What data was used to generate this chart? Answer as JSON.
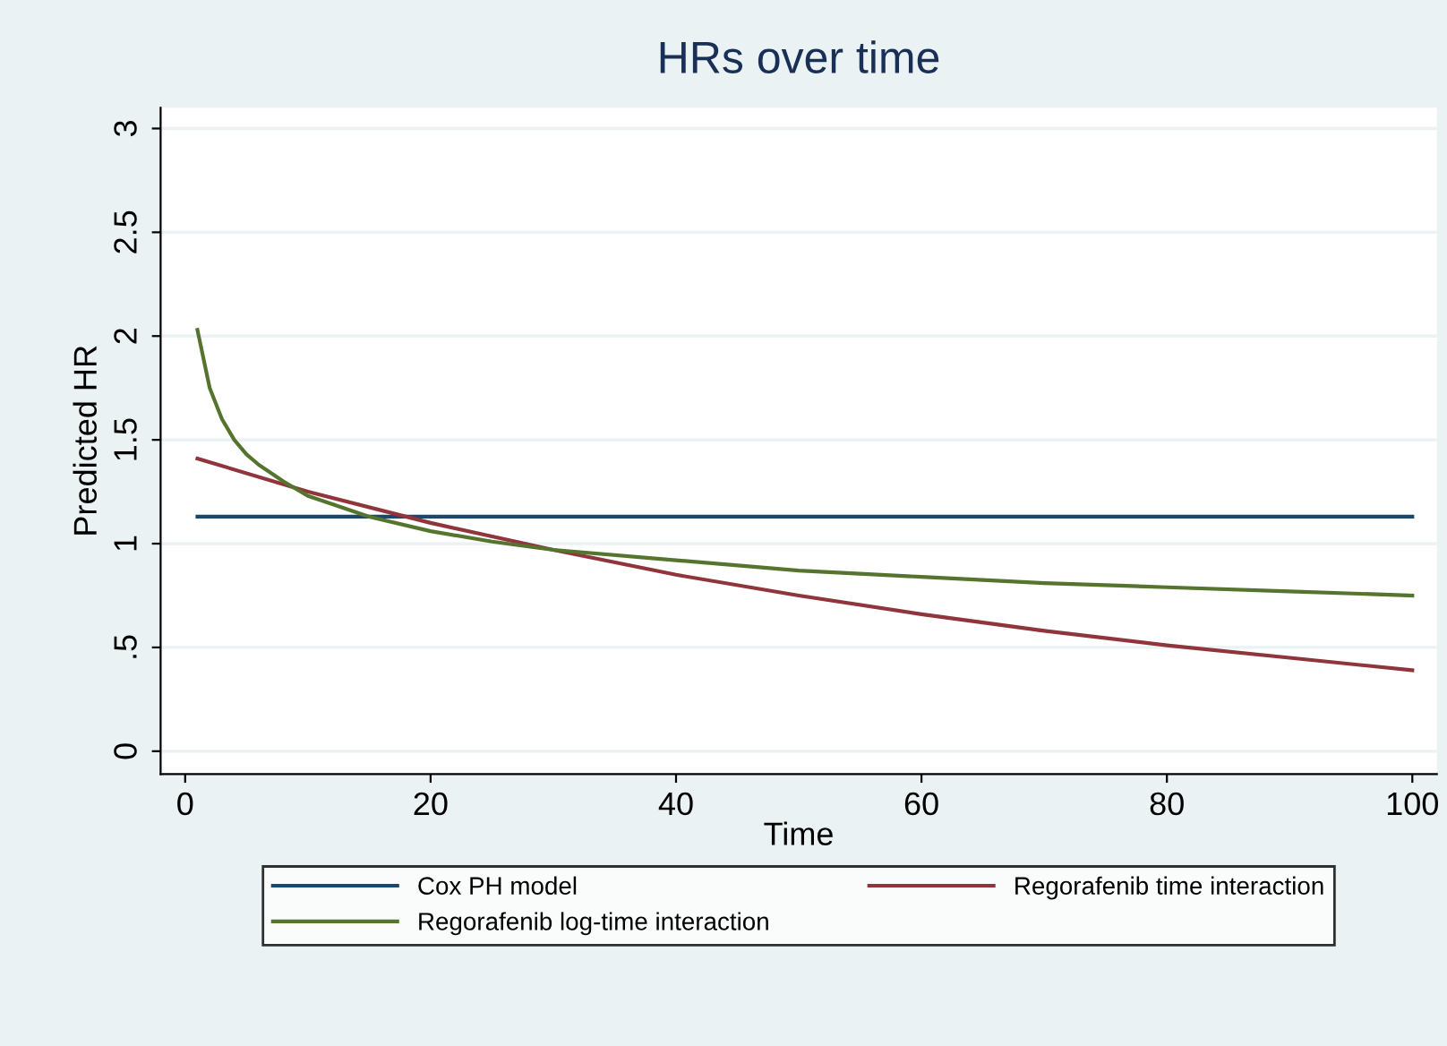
{
  "chart_data": {
    "type": "line",
    "title": "HRs over time",
    "xlabel": "Time",
    "ylabel": "Predicted HR",
    "xlim": [
      -2,
      102
    ],
    "ylim": [
      -0.11,
      3.1
    ],
    "xticks": [
      0,
      20,
      40,
      60,
      80,
      100
    ],
    "yticks": [
      0,
      {
        "value": 0.5,
        "label": ".5"
      },
      1,
      1.5,
      2,
      2.5,
      3
    ],
    "grid": "y",
    "legend": "bottom",
    "marker": "none",
    "line_style": "solid",
    "series": [
      {
        "name": "Cox PH model",
        "color": "#1a476f",
        "x": [
          1,
          100
        ],
        "values": [
          1.13,
          1.13
        ]
      },
      {
        "name": "Regorafenib time interaction",
        "color": "#90353b",
        "x": [
          1,
          10,
          20,
          30,
          40,
          50,
          60,
          70,
          80,
          90,
          100
        ],
        "values": [
          1.41,
          1.25,
          1.1,
          0.97,
          0.85,
          0.75,
          0.66,
          0.58,
          0.51,
          0.45,
          0.39
        ]
      },
      {
        "name": "Regorafenib log-time interaction",
        "color": "#55752f",
        "x": [
          1,
          2,
          3,
          4,
          5,
          6,
          8,
          10,
          12,
          15,
          20,
          25,
          30,
          40,
          50,
          60,
          70,
          80,
          90,
          100
        ],
        "values": [
          2.03,
          1.75,
          1.6,
          1.5,
          1.43,
          1.38,
          1.3,
          1.23,
          1.19,
          1.13,
          1.06,
          1.01,
          0.97,
          0.92,
          0.87,
          0.84,
          0.81,
          0.79,
          0.77,
          0.75
        ]
      }
    ]
  }
}
